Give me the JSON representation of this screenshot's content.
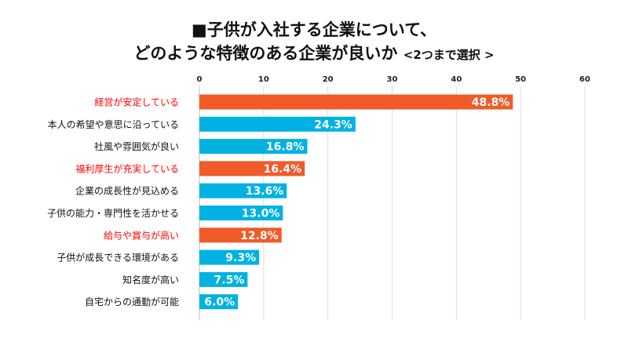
{
  "chart_data": {
    "type": "bar",
    "orientation": "horizontal",
    "title_line1": "■子供が入社する企業について、",
    "title_line2": "どのような特徴のある企業が良いか",
    "title_note": "<2つまで選択 >",
    "xlim": [
      0,
      60
    ],
    "xticks": [
      0,
      10,
      20,
      30,
      40,
      50,
      60
    ],
    "grid": true,
    "categories": [
      "経営が安定している",
      "本人の希望や意思に沿っている",
      "社風や雰囲気が良い",
      "福利厚生が充実している",
      "企業の成長性が見込める",
      "子供の能力・専門性を活かせる",
      "給与や賞与が高い",
      "子供が成長できる環境がある",
      "知名度が高い",
      "自宅からの通勤が可能"
    ],
    "values": [
      48.8,
      24.3,
      16.8,
      16.4,
      13.6,
      13.0,
      12.8,
      9.3,
      7.5,
      6.0
    ],
    "value_labels": [
      "48.8%",
      "24.3%",
      "16.8%",
      "16.4%",
      "13.6%",
      "13.0%",
      "12.8%",
      "9.3%",
      "7.5%",
      "6.0%"
    ],
    "highlighted": [
      true,
      false,
      false,
      true,
      false,
      false,
      true,
      false,
      false,
      false
    ],
    "colors": {
      "highlight": "#F15A29",
      "normal": "#00B2E2",
      "highlight_label": "#FF0000",
      "normal_label": "#111111",
      "grid": "#DDDDDD"
    }
  }
}
